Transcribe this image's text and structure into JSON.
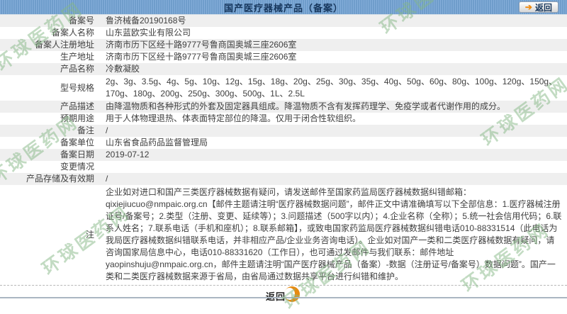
{
  "header": {
    "title": "国产医疗器械产品（备案）",
    "back_label": "返回",
    "back_icon": "➔"
  },
  "rows": [
    {
      "label": "备案号",
      "value": "鲁济械备20190168号"
    },
    {
      "label": "备案人名称",
      "value": "山东蓝欧实业有限公司"
    },
    {
      "label": "备案人注册地址",
      "value": "济南市历下区经十路9777号鲁商国奥城三座2606室"
    },
    {
      "label": "生产地址",
      "value": "济南市历下区经十路9777号鲁商国奥城三座2606室"
    },
    {
      "label": "产品名称",
      "value": "冷敷凝胶"
    },
    {
      "label": "型号规格",
      "value": "2g、3g、3.5g、4g、5g、10g、12g、15g、18g、20g、25g、30g、35g、40g、50g、60g、80g、100g、120g、150g、170g、180g、200g、250g、300g、500g、1L、2.5L"
    },
    {
      "label": "产品描述",
      "value": "由降温物质和各种形式的外套及固定器具组成。降温物质不含有发挥药理学、免疫学或者代谢作用的成分。"
    },
    {
      "label": "预期用途",
      "value": "用于人体物理退热、体表面特定部位的降温。仅用于闭合性软组织。"
    },
    {
      "label": "备注",
      "value": "/"
    },
    {
      "label": "备案单位",
      "value": "山东省食品药品监督管理局"
    },
    {
      "label": "备案日期",
      "value": "2019-07-12"
    },
    {
      "label": "变更情况",
      "value": ""
    },
    {
      "label": "产品存储及有效期",
      "value": "/"
    },
    {
      "label": "注",
      "value": "企业如对进口和国产三类医疗器械数据有疑问，请发送邮件至国家药监局医疗器械数据纠错邮箱：qixiejiucuo@nmpaic.org.cn【邮件主题请注明“医疗器械数据问题”，邮件正文中请准确填写以下全部信息：1.医疗器械注册证号/备案号；2.类型（注册、变更、延续等）；3.问题描述（500字以内）；4.企业名称（全称）；5.统一社会信用代码；6.联系人姓名；7.联系电话（手机和座机）；8.联系邮箱】，或致电国家药监局医疗器械数据纠错电话010-88331514（此电话为我局医疗器械数据纠错联系电话，并非相应产品/企业业务咨询电话）。企业如对国产一类和二类医疗器械数据有疑问，请咨询国家局信息中心，电话010-88331620（工作日），也可通过发邮件与我们联系：邮件地址yaopinshuju@nmpaic.org.cn，邮件主题请注明“国产医疗器械产品（备案）-数据（注册证号/备案号）数据问题”。国产一类和二类医疗器械数据来源于省局，由省局通过数据共享平台进行纠错和维护。"
    }
  ],
  "footer": {
    "back_label": "返回"
  },
  "watermark": {
    "text": "环球医药网",
    "color": "#8fbf8f"
  },
  "colors": {
    "header_bg": "#6f9dcb",
    "header_text": "#16365c",
    "row_stripe": "#efefef",
    "accent_orange": "#e78b10",
    "bottom_line": "#aab6c2"
  }
}
